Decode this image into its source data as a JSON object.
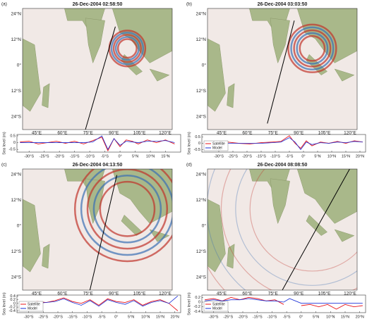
{
  "maps": [
    {
      "panel": "(a)",
      "title": "26-Dec-2004 02:58:50",
      "lon_labels": [
        "45°E",
        "60°E",
        "75°E",
        "90°E",
        "105°E",
        "120°E"
      ],
      "lat_labels": [
        "24°N",
        "12°N",
        "0°",
        "12°S",
        "24°S"
      ]
    },
    {
      "panel": "(b)",
      "title": "26-Dec-2004 03:03:50",
      "lon_labels": [
        "45°E",
        "60°E",
        "75°E",
        "90°E",
        "105°E",
        "120°E"
      ],
      "lat_labels": [
        "24°N",
        "12°N",
        "0°",
        "12°S",
        "24°S"
      ]
    },
    {
      "panel": "(c)",
      "title": "26-Dec-2004 04:13:50",
      "lon_labels": [
        "45°E",
        "60°E",
        "75°E",
        "90°E",
        "105°E",
        "120°E"
      ],
      "lat_labels": [
        "24°N",
        "12°N",
        "0°",
        "12°S",
        "24°S"
      ]
    },
    {
      "panel": "(d)",
      "title": "26-Dec-2004 08:08:50",
      "lon_labels": [
        "45°E",
        "60°E",
        "75°E",
        "90°E",
        "105°E",
        "120°E"
      ],
      "lat_labels": [
        "24°N",
        "12°N",
        "0°",
        "12°S",
        "24°S"
      ]
    }
  ],
  "chart_data": [
    {
      "type": "line",
      "ylabel": "Sea level (m)",
      "x": [
        -33,
        -30,
        -27,
        -24,
        -21,
        -18,
        -15,
        -12,
        -9,
        -6,
        -4,
        -2,
        0,
        2,
        4,
        6,
        9,
        12,
        15,
        18
      ],
      "series": [
        {
          "color": "#e8141a",
          "values": [
            0.05,
            0.1,
            -0.1,
            0.0,
            0.1,
            -0.05,
            0.1,
            -0.1,
            0.15,
            0.4,
            -0.6,
            0.3,
            -0.3,
            0.2,
            0.1,
            -0.1,
            0.2,
            0.0,
            0.2,
            -0.1
          ]
        },
        {
          "color": "#1a2fd6",
          "values": [
            0,
            0,
            0,
            0,
            0,
            0,
            0,
            0,
            0.05,
            0.5,
            -0.5,
            0.3,
            -0.2,
            0.1,
            0.05,
            0,
            0.1,
            0.1,
            0.15,
            0
          ]
        }
      ],
      "xlim": [
        -34,
        20
      ],
      "ylim": [
        -0.7,
        0.6
      ],
      "xticks": [
        {
          "value": -30,
          "label": "-30°S"
        },
        {
          "value": -25,
          "label": "-25°S"
        },
        {
          "value": -20,
          "label": "-20°S"
        },
        {
          "value": -15,
          "label": "-15°S"
        },
        {
          "value": -10,
          "label": "-10°S"
        },
        {
          "value": -5,
          "label": "-5°S"
        },
        {
          "value": 0,
          "label": "0°"
        },
        {
          "value": 5,
          "label": "5°N"
        },
        {
          "value": 10,
          "label": "10°N"
        },
        {
          "value": 15,
          "label": "15°N"
        }
      ],
      "yticks": [
        -0.5,
        0,
        0.5
      ]
    },
    {
      "type": "line",
      "ylabel": "Sea level (m)",
      "x": [
        -35,
        -31,
        -27,
        -23,
        -19,
        -15,
        -11,
        -8,
        -5,
        -3,
        -1,
        1,
        3,
        6,
        9,
        12,
        15,
        18,
        21
      ],
      "series": [
        {
          "name": "Satellite",
          "color": "#e8141a",
          "values": [
            0.05,
            -0.05,
            0.1,
            0.0,
            -0.05,
            0.05,
            0.1,
            0.15,
            0.6,
            0.0,
            -0.4,
            0.2,
            -0.2,
            0.1,
            0.0,
            0.15,
            0.0,
            0.2,
            0.1
          ]
        },
        {
          "name": "Model",
          "color": "#1a2fd6",
          "values": [
            0,
            0,
            0,
            0,
            0,
            0,
            0.05,
            0.1,
            0.45,
            0.1,
            -0.5,
            0.1,
            -0.1,
            0.05,
            0.0,
            0.1,
            0.05,
            0.15,
            0.1
          ]
        }
      ],
      "xlim": [
        -36,
        22
      ],
      "ylim": [
        -0.7,
        0.7
      ],
      "xticks": [
        {
          "value": -30,
          "label": "-30°S"
        },
        {
          "value": -25,
          "label": "-25°S"
        },
        {
          "value": -20,
          "label": "-20°S"
        },
        {
          "value": -15,
          "label": "-15°S"
        },
        {
          "value": -10,
          "label": "-10°S"
        },
        {
          "value": -5,
          "label": "-5°S"
        },
        {
          "value": 0,
          "label": "0°"
        },
        {
          "value": 5,
          "label": "5°N"
        },
        {
          "value": 10,
          "label": "10°N"
        },
        {
          "value": 15,
          "label": "15°N"
        },
        {
          "value": 20,
          "label": "20°N"
        }
      ],
      "yticks": [
        -0.5,
        0,
        0.5
      ]
    },
    {
      "type": "line",
      "ylabel": "Sea level (m)",
      "x": [
        -33,
        -30,
        -27,
        -24,
        -21,
        -18,
        -15,
        -12,
        -9,
        -6,
        -3,
        0,
        3,
        6,
        9,
        12,
        15,
        18,
        21
      ],
      "series": [
        {
          "name": "Satellite",
          "color": "#e8141a",
          "values": [
            0.0,
            0.05,
            0.1,
            0.05,
            0.15,
            0.3,
            0.1,
            0.0,
            0.2,
            -0.1,
            0.25,
            0.1,
            0.05,
            0.2,
            -0.1,
            0.1,
            0.2,
            0.0,
            -0.4
          ]
        },
        {
          "name": "Model",
          "color": "#1a2fd6",
          "values": [
            0,
            0,
            0,
            0.05,
            0.1,
            0.25,
            0.05,
            -0.1,
            0.15,
            -0.15,
            0.2,
            0.05,
            -0.05,
            0.15,
            -0.15,
            0.05,
            0.15,
            0.0,
            0.4
          ]
        }
      ],
      "xlim": [
        -34,
        22
      ],
      "ylim": [
        -0.5,
        0.45
      ],
      "xticks": [
        {
          "value": -30,
          "label": "-30°S"
        },
        {
          "value": -25,
          "label": "-25°S"
        },
        {
          "value": -20,
          "label": "-20°S"
        },
        {
          "value": -15,
          "label": "-15°S"
        },
        {
          "value": -10,
          "label": "-10°S"
        },
        {
          "value": -5,
          "label": "-5°S"
        },
        {
          "value": 0,
          "label": "0°"
        },
        {
          "value": 5,
          "label": "5°N"
        },
        {
          "value": 10,
          "label": "10°N"
        },
        {
          "value": 15,
          "label": "15°N"
        },
        {
          "value": 20,
          "label": "20°N"
        }
      ],
      "yticks": [
        -0.4,
        -0.2,
        0,
        0.2,
        0.4
      ]
    },
    {
      "type": "line",
      "ylabel": "Sea level (m)",
      "x": [
        -33,
        -30,
        -27,
        -24,
        -21,
        -18,
        -15,
        -12,
        -9,
        -6,
        -4,
        0,
        3,
        6,
        9,
        12,
        15,
        18,
        21
      ],
      "series": [
        {
          "name": "Satellite",
          "color": "#e8141a",
          "values": [
            0.1,
            0.15,
            0.05,
            0.2,
            0.1,
            0.2,
            0.15,
            0.05,
            0.1,
            -0.1,
            null,
            -0.15,
            -0.1,
            -0.2,
            -0.1,
            -0.3,
            -0.1,
            -0.2,
            -0.15
          ]
        },
        {
          "name": "Model",
          "color": "#1a2fd6",
          "values": [
            0.05,
            0.1,
            0.05,
            0.1,
            0.1,
            0.15,
            0.1,
            0.05,
            0.05,
            0.0,
            0.15,
            -0.05,
            -0.05,
            -0.05,
            -0.05,
            -0.05,
            -0.05,
            -0.05,
            -0.05
          ]
        }
      ],
      "xlim": [
        -34,
        22
      ],
      "ylim": [
        -0.45,
        0.3
      ],
      "xticks": [
        {
          "value": -30,
          "label": "-30°S"
        },
        {
          "value": -25,
          "label": "-25°S"
        },
        {
          "value": -20,
          "label": "-20°S"
        },
        {
          "value": -15,
          "label": "-15°S"
        },
        {
          "value": -10,
          "label": "-10°S"
        },
        {
          "value": -5,
          "label": "-5°S"
        },
        {
          "value": 0,
          "label": "0°"
        },
        {
          "value": 5,
          "label": "5°N"
        },
        {
          "value": 10,
          "label": "10°N"
        },
        {
          "value": 15,
          "label": "15°N"
        },
        {
          "value": 20,
          "label": "20°N"
        }
      ],
      "yticks": [
        -0.4,
        -0.2,
        0,
        0.2
      ]
    }
  ]
}
